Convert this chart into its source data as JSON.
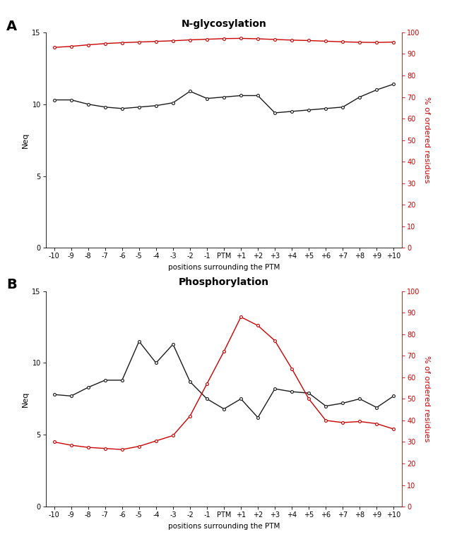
{
  "positions": [
    -10,
    -9,
    -8,
    -7,
    -6,
    -5,
    -4,
    -3,
    -2,
    -1,
    0,
    1,
    2,
    3,
    4,
    5,
    6,
    7,
    8,
    9,
    10
  ],
  "x_labels": [
    "-10",
    "-9",
    "-8",
    "-7",
    "-6",
    "-5",
    "-4",
    "-3",
    "-2",
    "-1",
    "PTM",
    "+1",
    "+2",
    "+3",
    "+4",
    "+5",
    "+6",
    "+7",
    "+8",
    "+9",
    "+10"
  ],
  "glyco_neq": [
    10.3,
    10.3,
    10.0,
    9.8,
    9.7,
    9.8,
    9.9,
    10.1,
    10.9,
    10.4,
    10.5,
    10.6,
    10.6,
    9.4,
    9.5,
    9.6,
    9.7,
    9.8,
    10.5,
    11.0,
    11.4
  ],
  "glyco_pct": [
    93.0,
    93.5,
    94.2,
    94.8,
    95.2,
    95.5,
    95.8,
    96.1,
    96.5,
    96.8,
    97.1,
    97.2,
    97.0,
    96.7,
    96.4,
    96.2,
    95.9,
    95.6,
    95.4,
    95.3,
    95.5
  ],
  "phospho_neq": [
    7.8,
    7.7,
    8.3,
    8.8,
    8.8,
    11.5,
    10.0,
    11.3,
    8.7,
    7.5,
    6.8,
    7.5,
    6.2,
    8.2,
    8.0,
    7.9,
    7.0,
    7.2,
    7.5,
    6.9,
    7.7
  ],
  "phospho_pct": [
    30.0,
    28.5,
    27.5,
    27.0,
    26.5,
    28.0,
    30.5,
    33.0,
    42.0,
    57.0,
    72.0,
    88.0,
    84.0,
    77.0,
    64.0,
    50.0,
    40.0,
    39.0,
    39.5,
    38.5,
    36.0
  ],
  "neq_color": "#1a1a1a",
  "pct_color": "#cc0000",
  "marker": "o",
  "markersize": 2.8,
  "linewidth": 1.0,
  "title_A": "N-glycosylation",
  "title_B": "Phosphorylation",
  "label_A": "A",
  "label_B": "B",
  "ylabel_left": "Neq",
  "ylabel_right": "% of ordered residues",
  "xlabel": "positions surrounding the PTM",
  "ylim_neq": [
    0,
    15
  ],
  "yticks_neq": [
    0,
    5,
    10,
    15
  ],
  "ylim_pct": [
    0,
    100
  ],
  "yticks_pct": [
    0,
    10,
    20,
    30,
    40,
    50,
    60,
    70,
    80,
    90,
    100
  ],
  "background_color": "#ffffff",
  "title_fontsize": 10,
  "label_fontsize": 14,
  "axis_fontsize": 7,
  "ylabel_fontsize": 8,
  "xlabel_fontsize": 7.5
}
